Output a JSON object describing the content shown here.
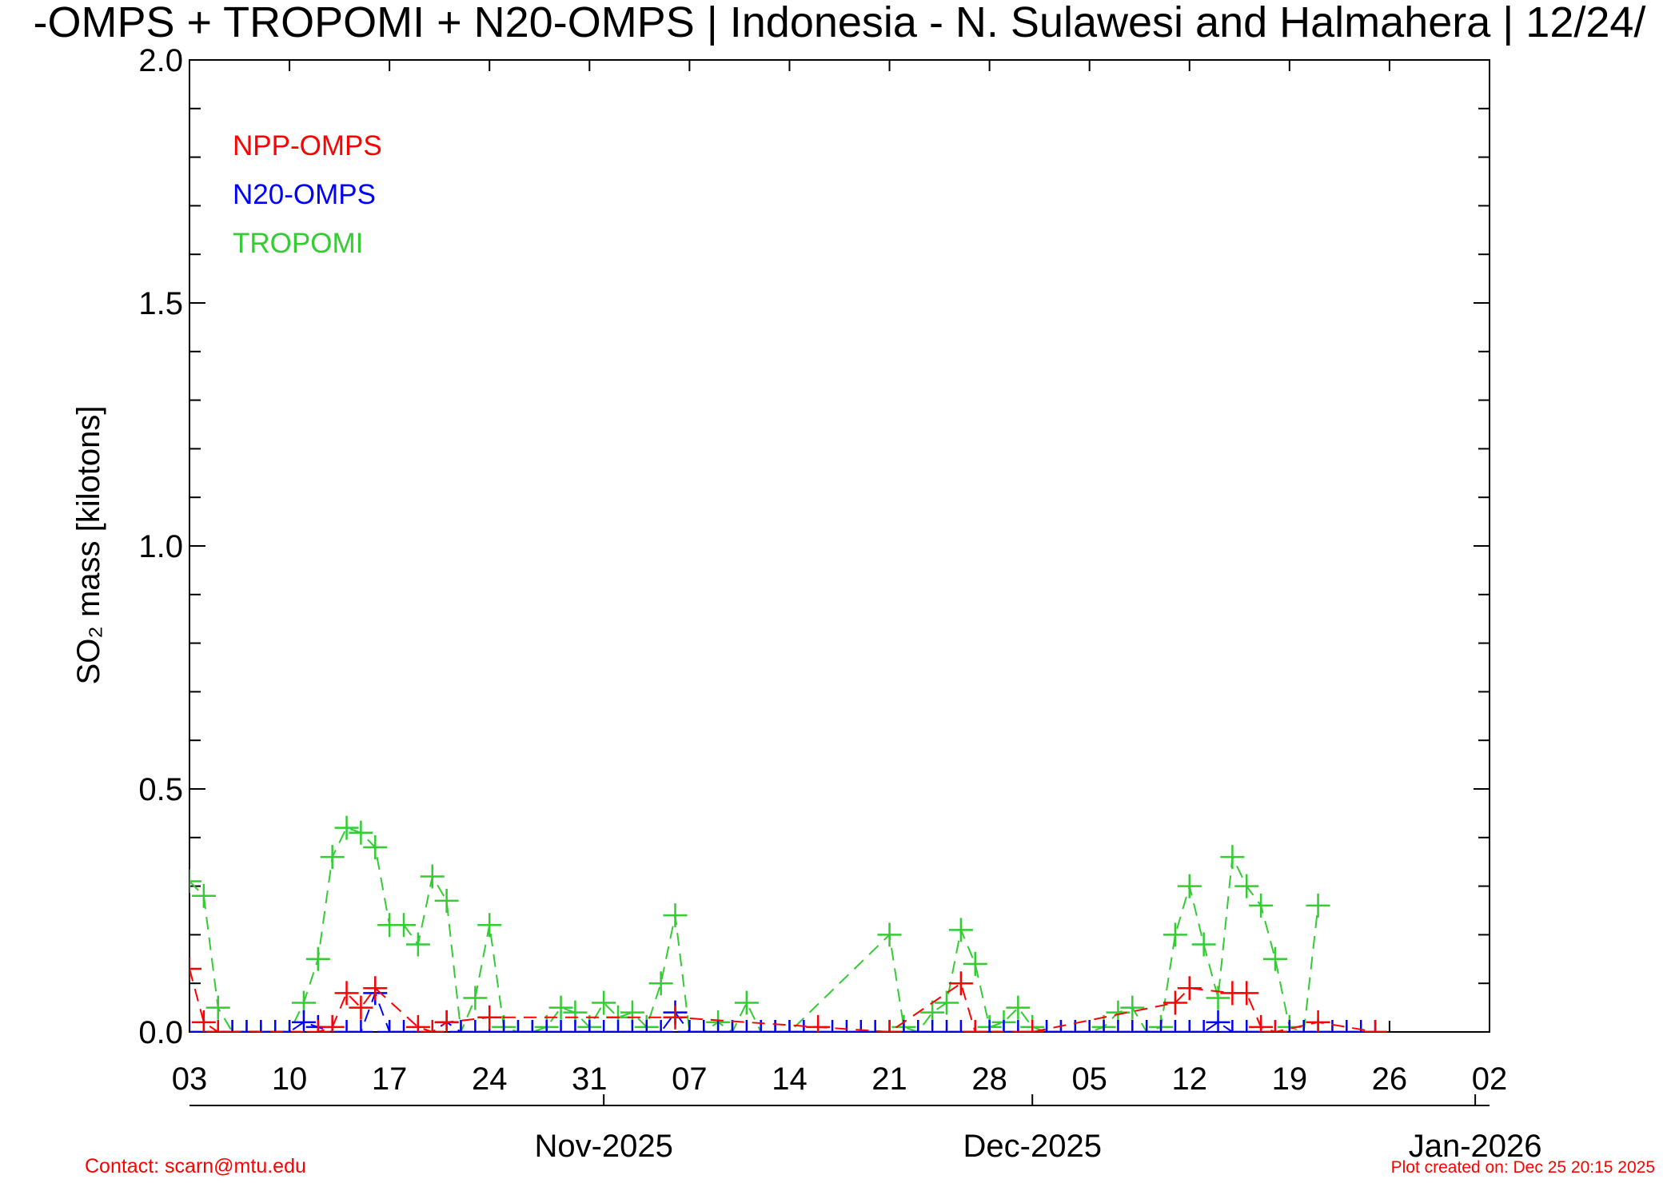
{
  "chart_data": {
    "type": "line",
    "title": "-OMPS + TROPOMI + N20-OMPS | Indonesia - N. Sulawesi and Halmahera | 12/24/",
    "ylabel": "SO₂ mass [kilotons]",
    "xlim": [
      "2025-10-03",
      "2026-01-02"
    ],
    "xticks": [
      {
        "value": "2025-10-03",
        "label": "03"
      },
      {
        "value": "2025-10-10",
        "label": "10"
      },
      {
        "value": "2025-10-17",
        "label": "17"
      },
      {
        "value": "2025-10-24",
        "label": "24"
      },
      {
        "value": "2025-10-31",
        "label": "31"
      },
      {
        "value": "2025-11-07",
        "label": "07"
      },
      {
        "value": "2025-11-14",
        "label": "14"
      },
      {
        "value": "2025-11-21",
        "label": "21"
      },
      {
        "value": "2025-11-28",
        "label": "28"
      },
      {
        "value": "2025-12-05",
        "label": "05"
      },
      {
        "value": "2025-12-12",
        "label": "12"
      },
      {
        "value": "2025-12-19",
        "label": "19"
      },
      {
        "value": "2025-12-26",
        "label": "26"
      },
      {
        "value": "2026-01-02",
        "label": "02"
      }
    ],
    "xmonthticks": [
      {
        "value": "2025-11-01",
        "label": "Nov-2025"
      },
      {
        "value": "2025-12-01",
        "label": "Dec-2025"
      },
      {
        "value": "2026-01-01",
        "label": "Jan-2026"
      }
    ],
    "ylim": [
      0,
      2.0
    ],
    "yticks": [
      {
        "value": 0,
        "label": "0.0"
      },
      0.5,
      {
        "value": 1,
        "label": "1.0"
      },
      1.5,
      {
        "value": 2,
        "label": "2.0"
      }
    ],
    "yminorticks": [
      0.1,
      0.2,
      0.3,
      0.4,
      0.6,
      0.7,
      0.8,
      0.9,
      1.1,
      1.2,
      1.3,
      1.4,
      1.6,
      1.7,
      1.8,
      1.9
    ],
    "grid": false,
    "legend": "upper left",
    "series": [
      {
        "name": "NPP-OMPS",
        "color": "#ff0000",
        "x": [
          "2025-10-03",
          "2025-10-04",
          "2025-10-05",
          "2025-10-12",
          "2025-10-13",
          "2025-10-14",
          "2025-10-15",
          "2025-10-16",
          "2025-10-19",
          "2025-10-20",
          "2025-10-21",
          "2025-10-24",
          "2025-11-06",
          "2025-11-16",
          "2025-11-21",
          "2025-11-26",
          "2025-11-27",
          "2025-12-01",
          "2025-12-11",
          "2025-12-12",
          "2025-12-15",
          "2025-12-16",
          "2025-12-17",
          "2025-12-18",
          "2025-12-21",
          "2025-12-25"
        ],
        "values": [
          0.13,
          0.02,
          0,
          0,
          0.01,
          0.08,
          0.05,
          0.09,
          0.01,
          0,
          0.02,
          0.03,
          0.03,
          0.01,
          0,
          0.1,
          0,
          0,
          0.06,
          0.09,
          0.08,
          0.08,
          0.01,
          0,
          0.02,
          0
        ]
      },
      {
        "name": "N20-OMPS",
        "color": "#0000ff",
        "x": [
          "2025-10-03",
          "2025-10-04",
          "2025-10-05",
          "2025-10-06",
          "2025-10-07",
          "2025-10-08",
          "2025-10-09",
          "2025-10-10",
          "2025-10-11",
          "2025-10-12",
          "2025-10-13",
          "2025-10-14",
          "2025-10-15",
          "2025-10-16",
          "2025-10-17",
          "2025-10-18",
          "2025-10-19",
          "2025-10-20",
          "2025-10-21",
          "2025-10-22",
          "2025-10-23",
          "2025-10-24",
          "2025-10-25",
          "2025-10-26",
          "2025-10-27",
          "2025-10-28",
          "2025-10-29",
          "2025-10-30",
          "2025-10-31",
          "2025-11-01",
          "2025-11-02",
          "2025-11-03",
          "2025-11-04",
          "2025-11-05",
          "2025-11-06",
          "2025-11-07",
          "2025-11-08",
          "2025-11-09",
          "2025-11-10",
          "2025-11-11",
          "2025-11-12",
          "2025-11-13",
          "2025-11-14",
          "2025-11-15",
          "2025-11-16",
          "2025-11-17",
          "2025-11-18",
          "2025-11-19",
          "2025-11-20",
          "2025-11-21",
          "2025-11-22",
          "2025-11-23",
          "2025-11-24",
          "2025-11-25",
          "2025-11-26",
          "2025-11-27",
          "2025-11-28",
          "2025-11-29",
          "2025-11-30",
          "2025-12-01",
          "2025-12-02",
          "2025-12-03",
          "2025-12-04",
          "2025-12-05",
          "2025-12-06",
          "2025-12-07",
          "2025-12-08",
          "2025-12-09",
          "2025-12-10",
          "2025-12-11",
          "2025-12-12",
          "2025-12-13",
          "2025-12-14",
          "2025-12-15",
          "2025-12-16",
          "2025-12-17",
          "2025-12-18",
          "2025-12-19",
          "2025-12-20",
          "2025-12-21",
          "2025-12-22",
          "2025-12-23",
          "2025-12-24",
          "2025-12-25"
        ],
        "values": [
          0,
          0,
          0,
          0,
          0,
          0,
          0,
          0,
          0.02,
          0.01,
          0,
          0,
          0,
          0.08,
          0,
          0,
          0,
          0,
          0.02,
          0,
          0,
          0,
          0,
          0,
          0,
          0,
          0,
          0,
          0,
          0,
          0,
          0,
          0,
          0,
          0.04,
          0,
          0,
          0,
          0,
          0,
          0,
          0,
          0,
          0,
          0,
          0,
          0,
          0,
          0,
          0,
          0,
          0,
          0,
          0,
          0,
          0,
          0,
          0,
          0,
          0,
          0,
          0,
          0,
          0,
          0,
          0,
          0,
          0,
          0,
          0,
          0,
          0,
          0.02,
          0,
          0,
          0,
          0,
          0,
          0,
          0,
          0,
          0,
          0,
          0
        ]
      },
      {
        "name": "TROPOMI",
        "color": "#33cc33",
        "x": [
          "2025-10-03",
          "2025-10-04",
          "2025-10-05",
          "2025-10-06",
          "2025-10-07",
          "2025-10-08",
          "2025-10-09",
          "2025-10-10",
          "2025-10-11",
          "2025-10-12",
          "2025-10-13",
          "2025-10-14",
          "2025-10-15",
          "2025-10-16",
          "2025-10-17",
          "2025-10-18",
          "2025-10-19",
          "2025-10-20",
          "2025-10-21",
          "2025-10-22",
          "2025-10-23",
          "2025-10-24",
          "2025-10-25",
          "2025-10-26",
          "2025-10-27",
          "2025-10-28",
          "2025-10-29",
          "2025-10-30",
          "2025-10-31",
          "2025-11-01",
          "2025-11-02",
          "2025-11-03",
          "2025-11-04",
          "2025-11-05",
          "2025-11-06",
          "2025-11-07",
          "2025-11-08",
          "2025-11-09",
          "2025-11-10",
          "2025-11-11",
          "2025-11-12",
          "2025-11-13",
          "2025-11-14",
          "2025-11-21",
          "2025-11-22",
          "2025-11-23",
          "2025-11-24",
          "2025-11-25",
          "2025-11-26",
          "2025-11-27",
          "2025-11-28",
          "2025-11-29",
          "2025-11-30",
          "2025-12-01",
          "2025-12-02",
          "2025-12-03",
          "2025-12-04",
          "2025-12-05",
          "2025-12-06",
          "2025-12-07",
          "2025-12-08",
          "2025-12-09",
          "2025-12-10",
          "2025-12-11",
          "2025-12-12",
          "2025-12-13",
          "2025-12-14",
          "2025-12-15",
          "2025-12-16",
          "2025-12-17",
          "2025-12-18",
          "2025-12-19",
          "2025-12-20",
          "2025-12-21"
        ],
        "values": [
          0.31,
          0.28,
          0.05,
          0,
          0,
          0,
          0,
          0,
          0.06,
          0.15,
          0.36,
          0.42,
          0.41,
          0.38,
          0.22,
          0.22,
          0.18,
          0.32,
          0.27,
          0,
          0.07,
          0.22,
          0.01,
          0,
          0,
          0.01,
          0.05,
          0.04,
          0.01,
          0.06,
          0.03,
          0.04,
          0.01,
          0.1,
          0.24,
          0,
          0,
          0.02,
          0,
          0.06,
          0,
          0,
          0,
          0.2,
          0.01,
          0,
          0.04,
          0.06,
          0.21,
          0.14,
          0.01,
          0.02,
          0.05,
          0.01,
          0,
          0,
          0,
          0,
          0.01,
          0.04,
          0.05,
          0,
          0.01,
          0.2,
          0.3,
          0.18,
          0.07,
          0.36,
          0.3,
          0.26,
          0.15,
          0.01,
          0,
          0.26
        ]
      }
    ],
    "footer_left": "Contact: scarn@mtu.edu",
    "footer_right": "Plot created on: Dec 25 20:15 2025"
  }
}
